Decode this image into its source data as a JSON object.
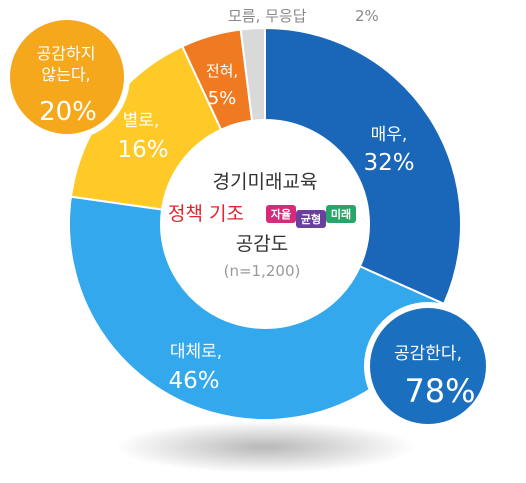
{
  "chart_data": {
    "type": "pie",
    "title_lines": [
      "경기미래교육",
      "정책 기조",
      "공감도"
    ],
    "sample": "(n=1,200)",
    "badge": [
      "자율",
      "균형",
      "미래"
    ],
    "categories": [
      "매우,",
      "대체로,",
      "별로,",
      "전혀,",
      "모름, 무응답"
    ],
    "values": [
      32,
      46,
      16,
      5,
      2
    ],
    "value_labels": [
      "32%",
      "46%",
      "16%",
      "5%",
      "2%"
    ],
    "groups": [
      {
        "label": "공감한다,",
        "value": 78,
        "value_label": "78%"
      },
      {
        "label": "공감하지 않는다,",
        "label_lines": [
          "공감하지",
          "않는다,"
        ],
        "value": 20,
        "value_label": "20%"
      }
    ]
  },
  "colors": {
    "매우": "#1a66b8",
    "대체로": "#33a8ec",
    "별로": "#ffc928",
    "전혀": "#f07a22",
    "무응답": "#d9d9d9",
    "agree_bubble": "#1a6fbe",
    "disagree_bubble": "#f5a81c",
    "policy_red": "#e1262f",
    "badge_jayul": "#d62a7a",
    "badge_gyunhyeong": "#6a3fa0",
    "badge_mirae": "#2aa56a"
  }
}
